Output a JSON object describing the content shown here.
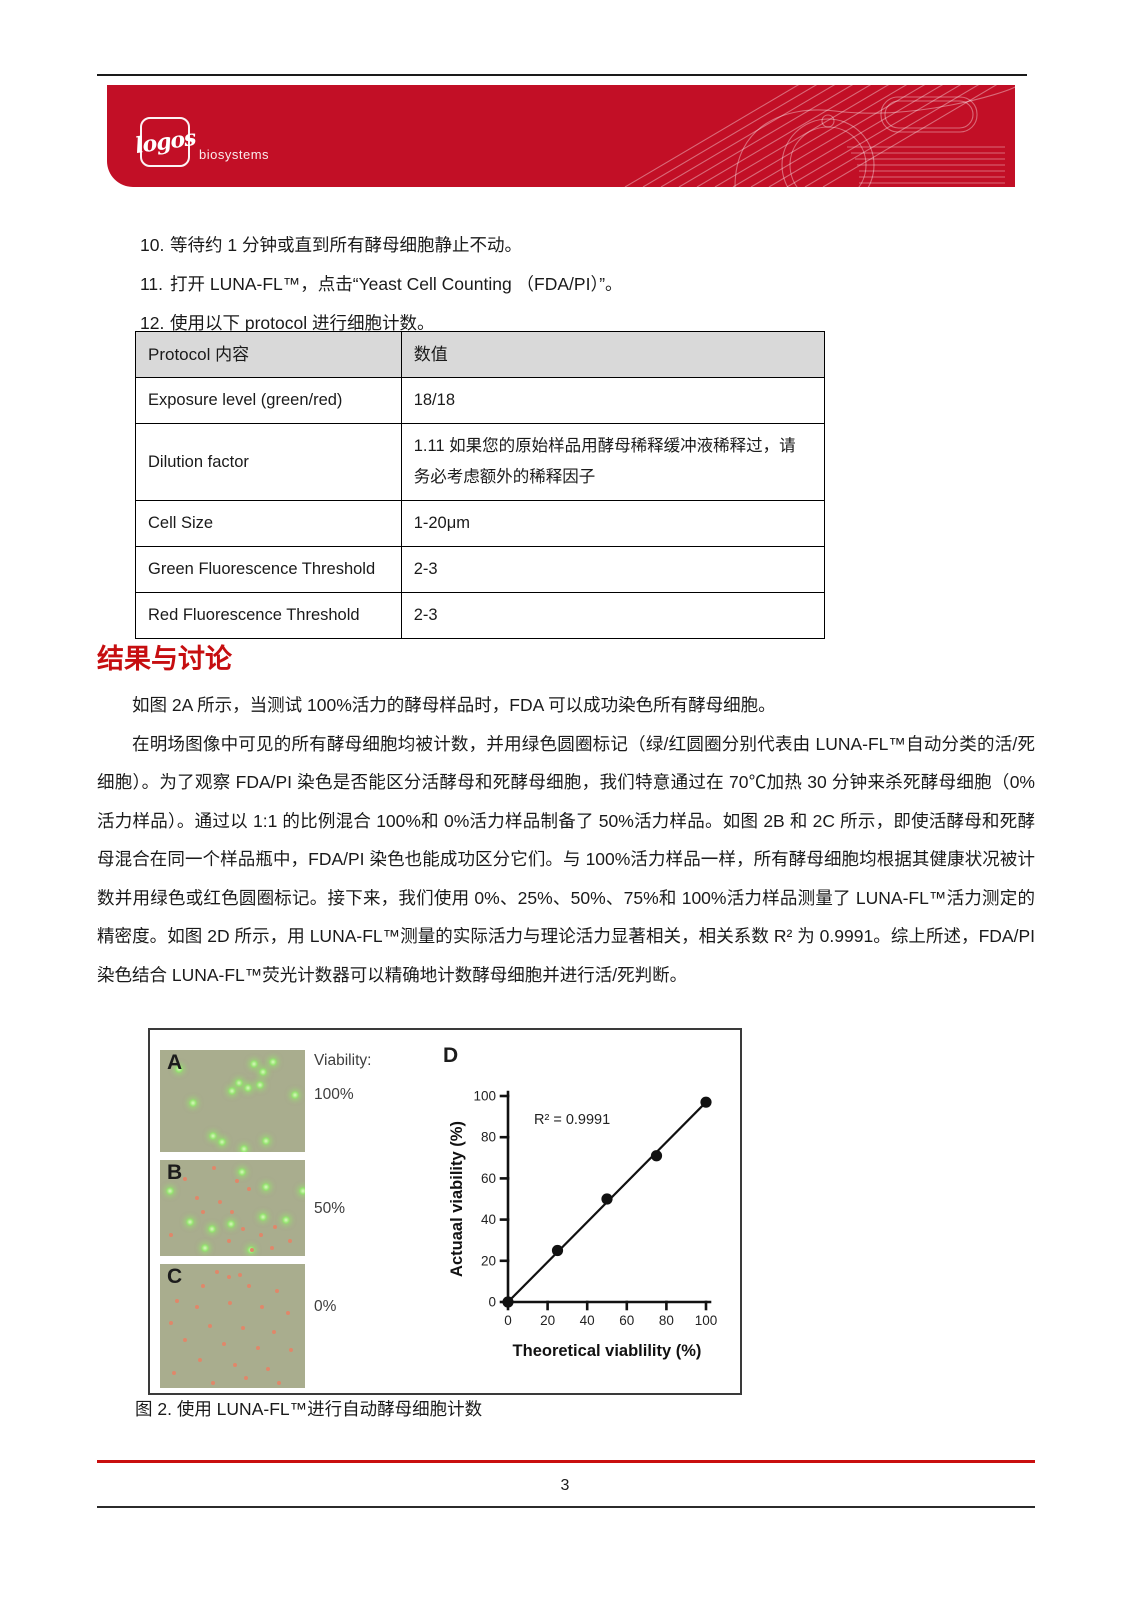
{
  "page": {
    "number": "3"
  },
  "header": {
    "brand_script": "logos",
    "brand_sub": "biosystems",
    "banner_color": "#c20f26"
  },
  "steps": [
    {
      "num": "10.",
      "text": "等待约 1 分钟或直到所有酵母细胞静止不动。"
    },
    {
      "num": "11.",
      "text": "打开 LUNA-FL™，点击“Yeast Cell Counting （FDA/PI）”。"
    },
    {
      "num": "12.",
      "text": "使用以下 protocol 进行细胞计数。"
    }
  ],
  "protocol_table": {
    "headers": [
      "Protocol 内容",
      "数值"
    ],
    "rows": [
      [
        "Exposure level (green/red)",
        "18/18"
      ],
      [
        "Dilution factor",
        "1.11 如果您的原始样品用酵母稀释缓冲液稀释过，请务必考虑额外的稀释因子"
      ],
      [
        "Cell Size",
        "1-20μm"
      ],
      [
        "Green Fluorescence Threshold",
        "2-3"
      ],
      [
        "Red Fluorescence Threshold",
        "2-3"
      ]
    ]
  },
  "section": {
    "title": "结果与讨论",
    "title_color": "#c60e10",
    "paragraphs": [
      "如图 2A 所示，当测试 100%活力的酵母样品时，FDA 可以成功染色所有酵母细胞。",
      "在明场图像中可见的所有酵母细胞均被计数，并用绿色圆圈标记（绿/红圆圈分别代表由 LUNA-FL™自动分类的活/死细胞）。为了观察 FDA/PI 染色是否能区分活酵母和死酵母细胞，我们特意通过在 70℃加热 30 分钟来杀死酵母细胞（0%活力样品）。通过以 1:1 的比例混合 100%和 0%活力样品制备了 50%活力样品。如图 2B 和 2C 所示，即使活酵母和死酵母混合在同一个样品瓶中，FDA/PI 染色也能成功区分它们。与 100%活力样品一样，所有酵母细胞均根据其健康状况被计数并用绿色或红色圆圈标记。接下来，我们使用 0%、25%、50%、75%和 100%活力样品测量了 LUNA-FL™活力测定的精密度。如图 2D 所示，用 LUNA-FL™测量的实际活力与理论活力显著相关，相关系数 R² 为 0.9991。综上所述，FDA/PI 染色结合 LUNA-FL™荧光计数器可以精确地计数酵母细胞并进行活/死判断。"
    ]
  },
  "figure": {
    "viability_heading": "Viability:",
    "panel_d_label": "D",
    "caption": "图 2. 使用 LUNA-FL™进行自动酵母细胞计数",
    "panel_bg": "#a9ad8e",
    "panels": [
      {
        "label": "A",
        "viability": "100%",
        "dots_green": [
          [
            10,
            15
          ],
          [
            62,
            10
          ],
          [
            68,
            18
          ],
          [
            75,
            8
          ],
          [
            52,
            28
          ],
          [
            58,
            33
          ],
          [
            47,
            36
          ],
          [
            66,
            30
          ],
          [
            20,
            48
          ],
          [
            90,
            40
          ],
          [
            40,
            86
          ],
          [
            55,
            93
          ],
          [
            70,
            85
          ],
          [
            34,
            80
          ]
        ],
        "dots_red": []
      },
      {
        "label": "B",
        "viability": "50%",
        "dots_green": [
          [
            4,
            28
          ],
          [
            54,
            8
          ],
          [
            70,
            24
          ],
          [
            96,
            28
          ],
          [
            18,
            60
          ],
          [
            33,
            68
          ],
          [
            46,
            62
          ],
          [
            68,
            55
          ],
          [
            84,
            58
          ],
          [
            28,
            88
          ],
          [
            60,
            90
          ]
        ],
        "dots_red": [
          [
            36,
            6
          ],
          [
            16,
            18
          ],
          [
            52,
            20
          ],
          [
            60,
            28
          ],
          [
            40,
            42
          ],
          [
            28,
            52
          ],
          [
            56,
            70
          ],
          [
            68,
            76
          ],
          [
            46,
            82
          ],
          [
            78,
            68
          ],
          [
            6,
            76
          ],
          [
            62,
            92
          ],
          [
            76,
            90
          ],
          [
            88,
            82
          ],
          [
            48,
            52
          ],
          [
            24,
            38
          ]
        ]
      },
      {
        "label": "C",
        "viability": "0%",
        "dots_green": [],
        "dots_red": [
          [
            38,
            5
          ],
          [
            46,
            9
          ],
          [
            54,
            7
          ],
          [
            28,
            16
          ],
          [
            60,
            16
          ],
          [
            79,
            20
          ],
          [
            10,
            28
          ],
          [
            24,
            33
          ],
          [
            47,
            30
          ],
          [
            69,
            33
          ],
          [
            87,
            38
          ],
          [
            6,
            46
          ],
          [
            33,
            48
          ],
          [
            56,
            50
          ],
          [
            77,
            53
          ],
          [
            16,
            60
          ],
          [
            43,
            63
          ],
          [
            66,
            66
          ],
          [
            89,
            68
          ],
          [
            26,
            76
          ],
          [
            50,
            80
          ],
          [
            73,
            83
          ],
          [
            8,
            86
          ],
          [
            58,
            90
          ],
          [
            35,
            94
          ],
          [
            81,
            94
          ]
        ]
      }
    ]
  },
  "chart_data": {
    "type": "scatter",
    "x": [
      0,
      25,
      50,
      75,
      100
    ],
    "y": [
      0,
      25,
      50,
      71,
      97
    ],
    "trendline": {
      "x0": 0,
      "y0": 0,
      "x1": 100,
      "y1": 97
    },
    "annotation": "R² = 0.9991",
    "xlabel": "Theoretical viablility (%)",
    "ylabel": "Actuaal viability (%)",
    "xlim": [
      0,
      100
    ],
    "ylim": [
      0,
      100
    ],
    "xticks": [
      0,
      20,
      40,
      60,
      80,
      100
    ],
    "yticks": [
      0,
      20,
      40,
      60,
      80,
      100
    ],
    "grid": false,
    "legend": "none",
    "marker_color": "#111111"
  }
}
